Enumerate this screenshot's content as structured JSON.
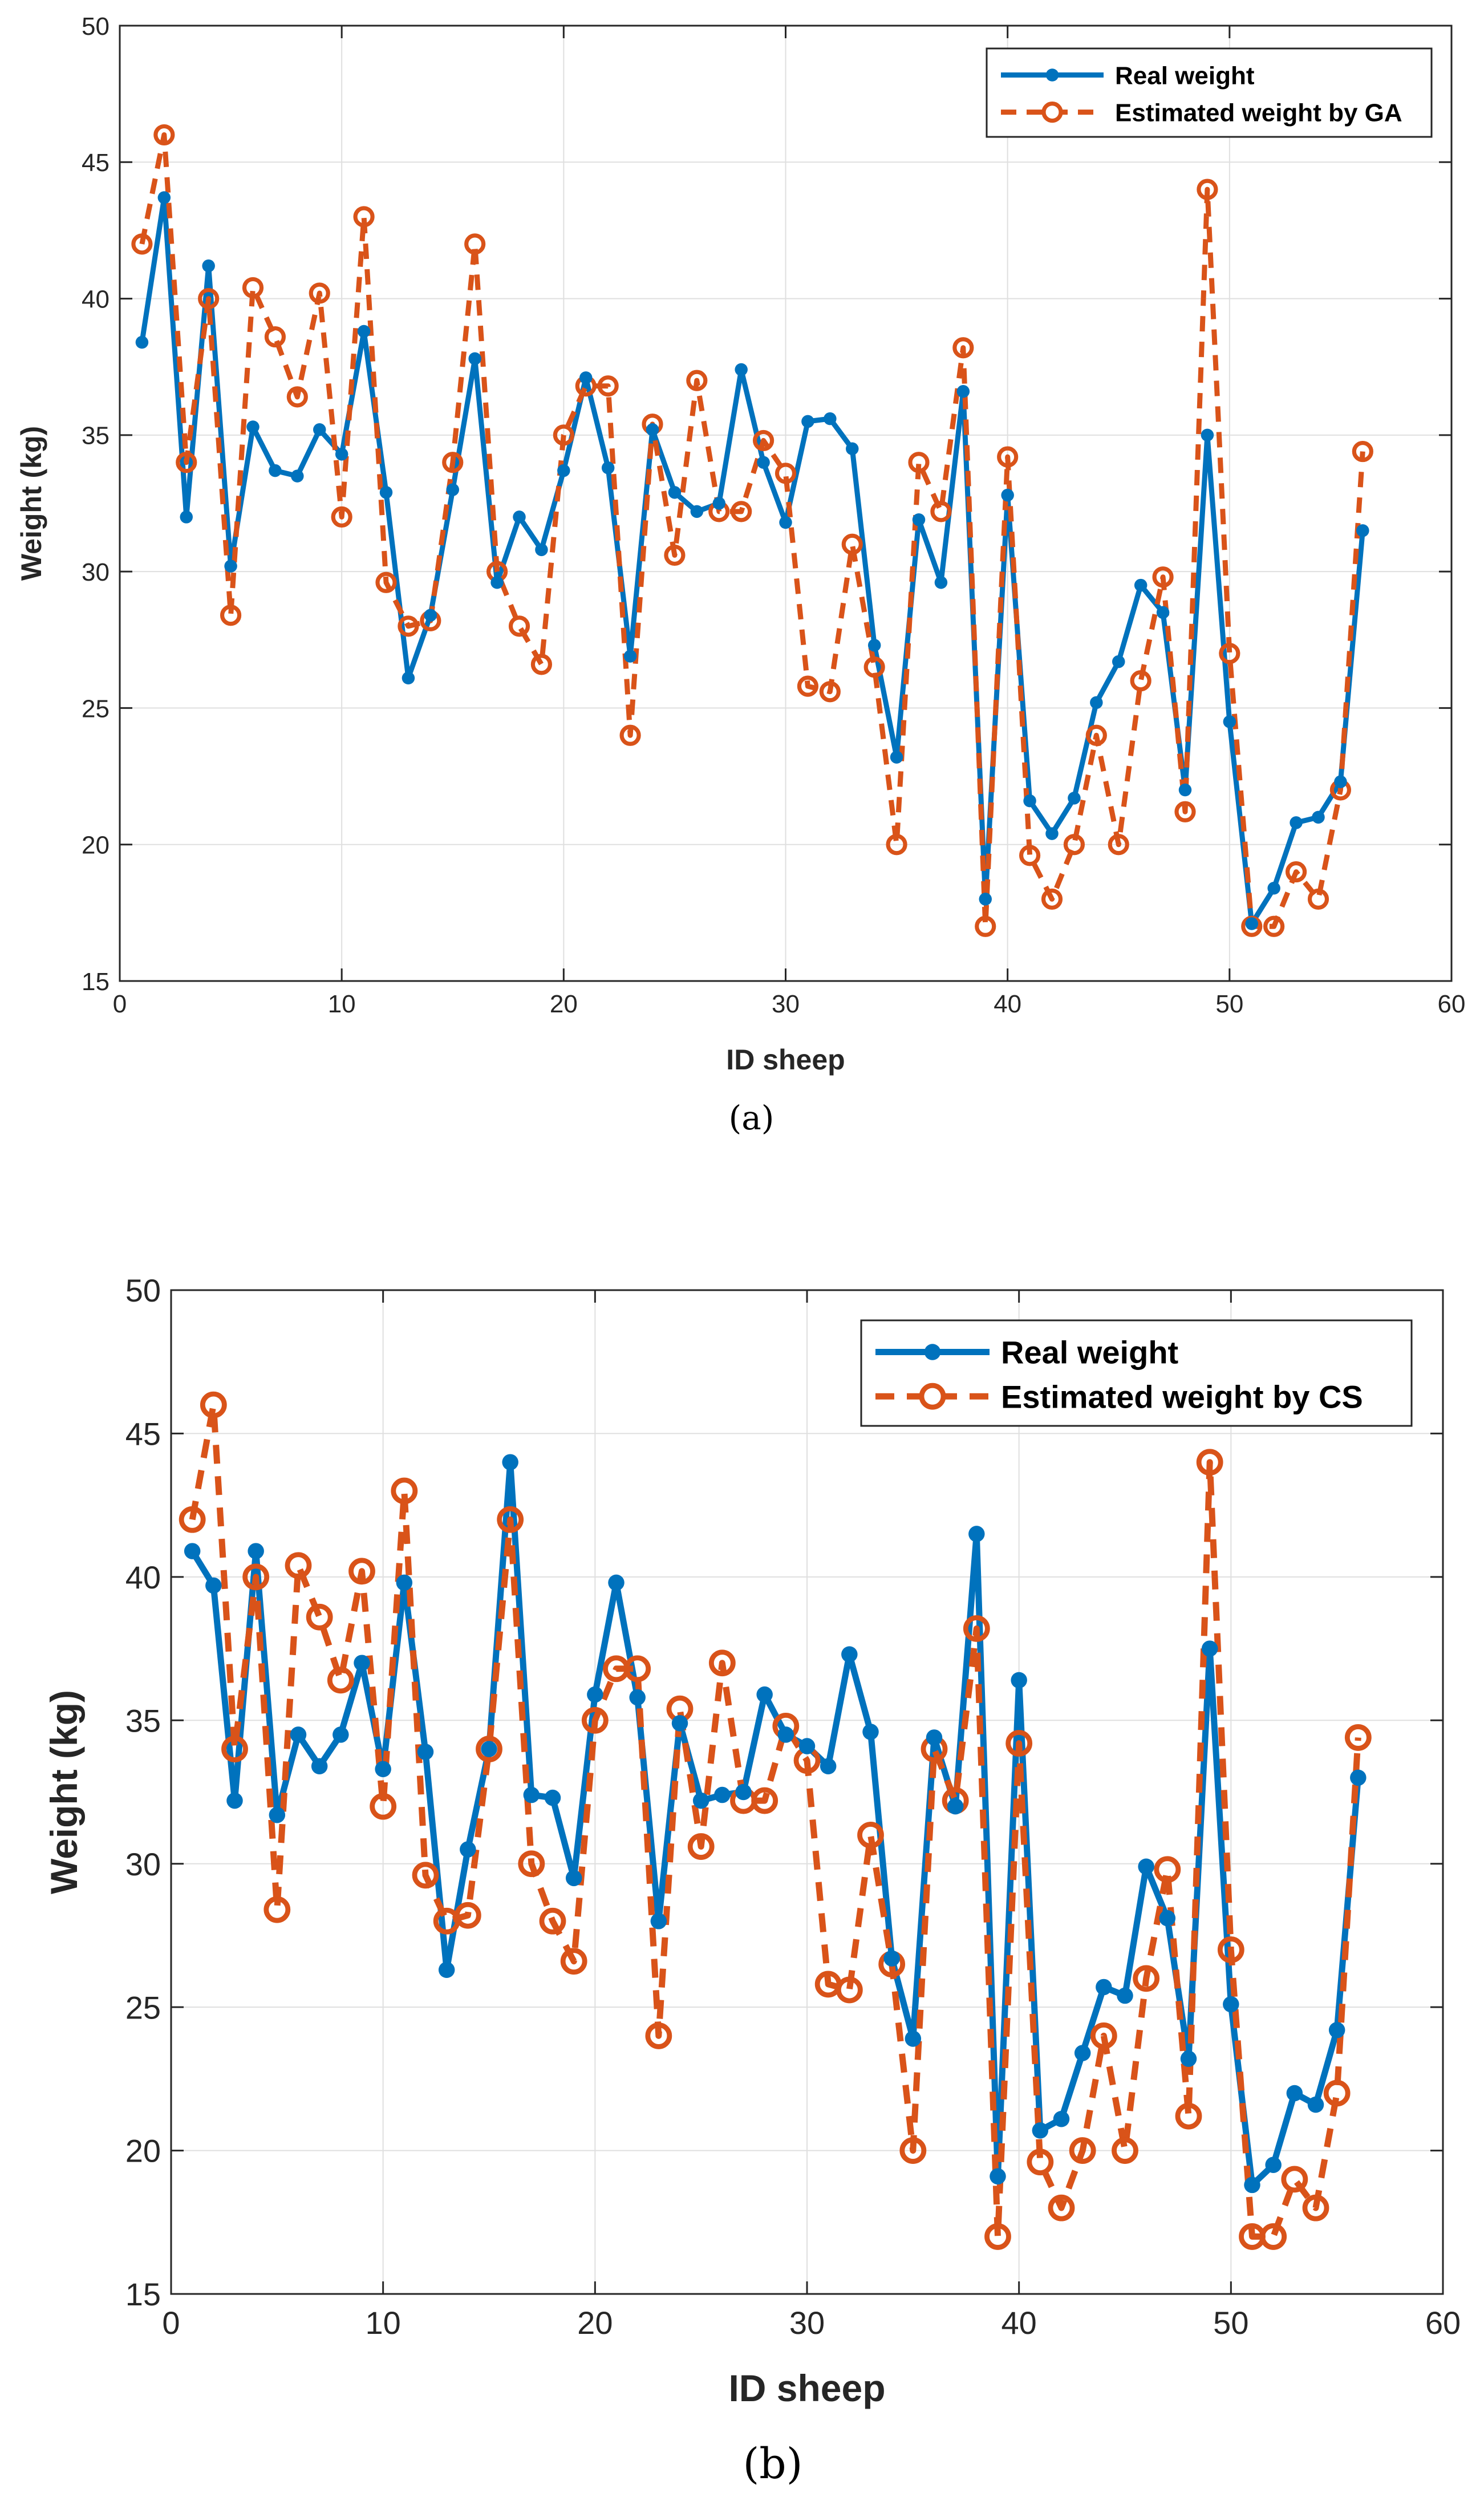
{
  "chart_data": [
    {
      "type": "line",
      "caption": "(a)",
      "xlabel": "ID sheep",
      "ylabel": "Weight (kg)",
      "xlim": [
        0,
        60
      ],
      "ylim": [
        15,
        50
      ],
      "xticks": [
        0,
        10,
        20,
        30,
        40,
        50,
        60
      ],
      "yticks": [
        15,
        20,
        25,
        30,
        35,
        40,
        45,
        50
      ],
      "grid": true,
      "legend_position": "top-right",
      "x": [
        1,
        2,
        3,
        4,
        5,
        6,
        7,
        8,
        9,
        10,
        11,
        12,
        13,
        14,
        15,
        16,
        17,
        18,
        19,
        20,
        21,
        22,
        23,
        24,
        25,
        26,
        27,
        28,
        29,
        30,
        31,
        32,
        33,
        34,
        35,
        36,
        37,
        38,
        39,
        40,
        41,
        42,
        43,
        44,
        45,
        46,
        47,
        48,
        49,
        50,
        51,
        52,
        53,
        54,
        55,
        56
      ],
      "series": [
        {
          "name": "Real weight",
          "color": "#0072BD",
          "style": "solid-dot",
          "values": [
            38.4,
            43.7,
            32.0,
            41.2,
            30.2,
            35.3,
            33.7,
            33.5,
            35.2,
            34.3,
            38.8,
            32.9,
            26.1,
            28.4,
            33.0,
            37.8,
            29.6,
            32.0,
            30.8,
            33.7,
            37.1,
            33.8,
            26.9,
            35.2,
            32.9,
            32.2,
            32.5,
            37.4,
            34.0,
            31.8,
            35.5,
            35.6,
            34.5,
            27.3,
            23.2,
            31.9,
            29.6,
            36.6,
            18.0,
            32.8,
            21.6,
            20.4,
            21.7,
            25.2,
            26.7,
            29.5,
            28.5,
            22.0,
            35.0,
            24.5,
            17.1,
            18.4,
            20.8,
            21.0,
            22.3,
            31.5
          ]
        },
        {
          "name": "Estimated weight by GA",
          "color": "#D95319",
          "style": "dashed-circle",
          "values": [
            42.0,
            46.0,
            34.0,
            40.0,
            28.4,
            40.4,
            38.6,
            36.4,
            40.2,
            32.0,
            43.0,
            29.6,
            28.0,
            28.2,
            34.0,
            42.0,
            30.0,
            28.0,
            26.6,
            35.0,
            36.8,
            36.8,
            24.0,
            35.4,
            30.6,
            37.0,
            32.2,
            32.2,
            34.8,
            33.6,
            25.8,
            25.6,
            31.0,
            26.5,
            20.0,
            34.0,
            32.2,
            38.2,
            17.0,
            34.2,
            19.6,
            18.0,
            20.0,
            24.0,
            20.0,
            26.0,
            29.8,
            21.2,
            44.0,
            27.0,
            17.0,
            17.0,
            19.0,
            18.0,
            22.0,
            34.4
          ]
        }
      ]
    },
    {
      "type": "line",
      "caption": "(b)",
      "xlabel": "ID sheep",
      "ylabel": "Weight (kg)",
      "xlim": [
        0,
        60
      ],
      "ylim": [
        15,
        50
      ],
      "xticks": [
        0,
        10,
        20,
        30,
        40,
        50,
        60
      ],
      "yticks": [
        15,
        20,
        25,
        30,
        35,
        40,
        45,
        50
      ],
      "grid": true,
      "legend_position": "top-right",
      "x": [
        1,
        2,
        3,
        4,
        5,
        6,
        7,
        8,
        9,
        10,
        11,
        12,
        13,
        14,
        15,
        16,
        17,
        18,
        19,
        20,
        21,
        22,
        23,
        24,
        25,
        26,
        27,
        28,
        29,
        30,
        31,
        32,
        33,
        34,
        35,
        36,
        37,
        38,
        39,
        40,
        41,
        42,
        43,
        44,
        45,
        46,
        47,
        48,
        49,
        50,
        51,
        52,
        53,
        54,
        55,
        56
      ],
      "series": [
        {
          "name": "Real weight",
          "color": "#0072BD",
          "style": "solid-dot",
          "values": [
            40.9,
            39.7,
            32.2,
            40.9,
            31.7,
            34.5,
            33.4,
            34.5,
            37.0,
            33.3,
            39.8,
            33.9,
            26.3,
            30.5,
            34.0,
            44.0,
            32.4,
            32.3,
            29.5,
            35.9,
            39.8,
            35.8,
            28.0,
            34.9,
            32.2,
            32.4,
            32.5,
            35.9,
            34.5,
            34.1,
            33.4,
            37.3,
            34.6,
            26.7,
            23.9,
            34.4,
            32.0,
            41.5,
            19.1,
            36.4,
            20.7,
            21.1,
            23.4,
            25.7,
            25.4,
            29.9,
            28.1,
            23.2,
            37.5,
            25.1,
            18.8,
            19.5,
            22.0,
            21.6,
            24.2,
            33.0
          ]
        },
        {
          "name": "Estimated weight by CS",
          "color": "#D95319",
          "style": "dashed-circle",
          "values": [
            42.0,
            46.0,
            34.0,
            40.0,
            28.4,
            40.4,
            38.6,
            36.4,
            40.2,
            32.0,
            43.0,
            29.6,
            28.0,
            28.2,
            34.0,
            42.0,
            30.0,
            28.0,
            26.6,
            35.0,
            36.8,
            36.8,
            24.0,
            35.4,
            30.6,
            37.0,
            32.2,
            32.2,
            34.8,
            33.6,
            25.8,
            25.6,
            31.0,
            26.5,
            20.0,
            34.0,
            32.2,
            38.2,
            17.0,
            34.2,
            19.6,
            18.0,
            20.0,
            24.0,
            20.0,
            26.0,
            29.8,
            21.2,
            44.0,
            27.0,
            17.0,
            17.0,
            19.0,
            18.0,
            22.0,
            34.4
          ]
        }
      ]
    }
  ]
}
